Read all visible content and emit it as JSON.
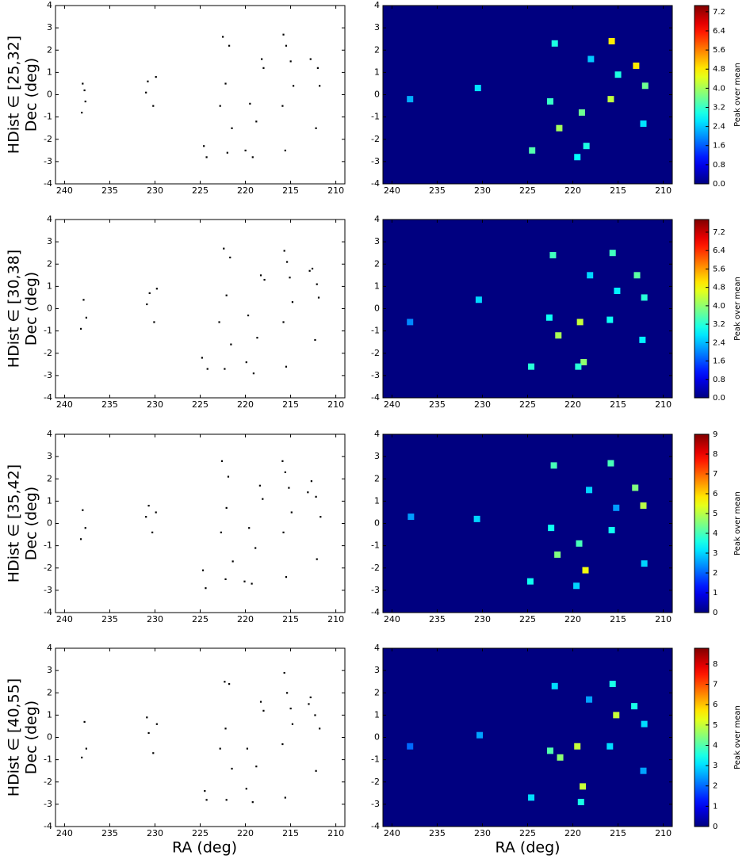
{
  "chart_data": [
    {
      "type": "scatter",
      "row_label": "HDist ∈ [25,32]",
      "ylabel": "Dec (deg)",
      "color": "#000000",
      "x": [
        238,
        237.7,
        238.1,
        237.8,
        230.8,
        230.2,
        231,
        229.9,
        224.6,
        224.3,
        222.5,
        221.8,
        222.2,
        222.8,
        221.5,
        222,
        219.5,
        218.8,
        220,
        219.2,
        218.2,
        218,
        215.8,
        215.5,
        215.9,
        215.6,
        215,
        214.7,
        212.8,
        212,
        211.8,
        212.2
      ],
      "y": [
        0.5,
        -0.3,
        -0.8,
        0.2,
        0.6,
        -0.5,
        0.1,
        0.8,
        -2.3,
        -2.8,
        2.6,
        2.2,
        0.5,
        -0.5,
        -1.5,
        -2.6,
        -0.4,
        -1.2,
        -2.5,
        -2.8,
        1.6,
        1.2,
        2.7,
        2.2,
        -0.5,
        -2.5,
        1.5,
        0.4,
        1.6,
        1.2,
        0.4,
        -1.5
      ],
      "xlim": [
        241,
        209
      ],
      "xticks": [
        240,
        235,
        230,
        225,
        220,
        215,
        210
      ],
      "ylim": [
        -4,
        4
      ],
      "yticks": [
        -4,
        -3,
        -2,
        -1,
        0,
        1,
        2,
        3,
        4
      ]
    },
    {
      "type": "heatmap",
      "colorbar_label": "Peak over mean",
      "x": [
        238,
        230.5,
        224.5,
        222,
        221.5,
        222.5,
        219,
        218.5,
        219.5,
        218,
        215.7,
        215.8,
        215,
        213,
        212,
        212.2
      ],
      "y": [
        -0.2,
        0.3,
        -2.5,
        2.3,
        -1.5,
        -0.3,
        -0.8,
        -2.3,
        -2.8,
        1.6,
        2.4,
        -0.2,
        0.9,
        1.3,
        0.4,
        -1.3
      ],
      "values": [
        2.2,
        2.6,
        3.4,
        3.0,
        4.0,
        3.2,
        3.6,
        3.0,
        2.8,
        2.4,
        4.8,
        4.2,
        3.0,
        4.8,
        3.6,
        2.6
      ],
      "clim": [
        0,
        7.46
      ],
      "cticks": [
        {
          "value": 0,
          "label": "0.0"
        },
        {
          "value": 0.8,
          "label": "0.8"
        },
        {
          "value": 1.6,
          "label": "1.6"
        },
        {
          "value": 2.4,
          "label": "2.4"
        },
        {
          "value": 3.2,
          "label": "3.2"
        },
        {
          "value": 4,
          "label": "4.0"
        },
        {
          "value": 4.8,
          "label": "4.8"
        },
        {
          "value": 5.6,
          "label": "5.6"
        },
        {
          "value": 6.4,
          "label": "6.4"
        },
        {
          "value": 7.2,
          "label": "7.2"
        }
      ],
      "xlim": [
        241,
        209
      ],
      "xticks": [
        240,
        235,
        230,
        225,
        220,
        215,
        210
      ],
      "ylim": [
        -4,
        4
      ],
      "yticks": [
        -4,
        -3,
        -2,
        -1,
        0,
        1,
        2,
        3,
        4
      ]
    },
    {
      "type": "scatter",
      "row_label": "HDist ∈ [30,38]",
      "ylabel": "Dec (deg)",
      "color": "#000000",
      "x": [
        237.9,
        237.6,
        238.2,
        230.6,
        230.1,
        230.9,
        229.8,
        224.8,
        224.2,
        222.4,
        221.7,
        222.1,
        222.9,
        221.6,
        222.3,
        219.7,
        218.7,
        219.9,
        219.1,
        218.3,
        217.9,
        215.7,
        215.4,
        215.8,
        215.5,
        215.1,
        214.8,
        212.9,
        212.1,
        211.9,
        212.3,
        212.6
      ],
      "y": [
        0.4,
        -0.4,
        -0.9,
        0.7,
        -0.6,
        0.2,
        0.9,
        -2.2,
        -2.7,
        2.7,
        2.3,
        0.6,
        -0.6,
        -1.6,
        -2.7,
        -0.3,
        -1.3,
        -2.4,
        -2.9,
        1.5,
        1.3,
        2.6,
        2.1,
        -0.6,
        -2.6,
        1.4,
        0.3,
        1.7,
        1.1,
        0.5,
        -1.4,
        1.8
      ],
      "xlim": [
        241,
        209
      ],
      "xticks": [
        240,
        235,
        230,
        225,
        220,
        215,
        210
      ],
      "ylim": [
        -4,
        4
      ],
      "yticks": [
        -4,
        -3,
        -2,
        -1,
        0,
        1,
        2,
        3,
        4
      ]
    },
    {
      "type": "heatmap",
      "colorbar_label": "Peak over mean",
      "x": [
        238,
        230.4,
        224.6,
        222.2,
        221.6,
        222.6,
        219.2,
        218.8,
        219.4,
        218.1,
        215.6,
        215.9,
        215.1,
        212.9,
        212.1,
        212.3
      ],
      "y": [
        -0.6,
        0.4,
        -2.6,
        2.4,
        -1.2,
        -0.4,
        -0.6,
        -2.4,
        -2.6,
        1.5,
        2.5,
        -0.5,
        0.8,
        1.5,
        0.5,
        -1.4
      ],
      "values": [
        2.0,
        2.6,
        3.2,
        3.4,
        4.2,
        3.0,
        4.4,
        4.0,
        3.2,
        2.6,
        3.4,
        3.0,
        2.8,
        3.6,
        3.2,
        2.8
      ],
      "clim": [
        0,
        7.75
      ],
      "cticks": [
        {
          "value": 0,
          "label": "0.0"
        },
        {
          "value": 0.8,
          "label": "0.8"
        },
        {
          "value": 1.6,
          "label": "1.6"
        },
        {
          "value": 2.4,
          "label": "2.4"
        },
        {
          "value": 3.2,
          "label": "3.2"
        },
        {
          "value": 4,
          "label": "4.0"
        },
        {
          "value": 4.8,
          "label": "4.8"
        },
        {
          "value": 5.6,
          "label": "5.6"
        },
        {
          "value": 6.4,
          "label": "6.4"
        },
        {
          "value": 7.2,
          "label": "7.2"
        }
      ],
      "xlim": [
        241,
        209
      ],
      "xticks": [
        240,
        235,
        230,
        225,
        220,
        215,
        210
      ],
      "ylim": [
        -4,
        4
      ],
      "yticks": [
        -4,
        -3,
        -2,
        -1,
        0,
        1,
        2,
        3,
        4
      ]
    },
    {
      "type": "scatter",
      "row_label": "HDist ∈ [35,42]",
      "ylabel": "Dec (deg)",
      "color": "#000000",
      "x": [
        238,
        237.7,
        238.2,
        230.7,
        230.3,
        231,
        229.9,
        224.7,
        224.4,
        222.6,
        221.9,
        222.1,
        222.7,
        221.4,
        222.2,
        219.6,
        218.9,
        220.1,
        219.3,
        218.4,
        218.1,
        215.9,
        215.6,
        215.8,
        215.5,
        215.2,
        214.9,
        212.7,
        212.2,
        211.7,
        212.1,
        213.1
      ],
      "y": [
        0.6,
        -0.2,
        -0.7,
        0.8,
        -0.4,
        0.3,
        0.5,
        -2.1,
        -2.9,
        2.8,
        2.1,
        0.7,
        -0.4,
        -1.7,
        -2.5,
        -0.2,
        -1.1,
        -2.6,
        -2.7,
        1.7,
        1.1,
        2.8,
        2.3,
        -0.4,
        -2.4,
        1.6,
        0.5,
        1.9,
        1.2,
        0.3,
        -1.6,
        1.4
      ],
      "xlim": [
        241,
        209
      ],
      "xticks": [
        240,
        235,
        230,
        225,
        220,
        215,
        210
      ],
      "ylim": [
        -4,
        4
      ],
      "yticks": [
        -4,
        -3,
        -2,
        -1,
        0,
        1,
        2,
        3,
        4
      ]
    },
    {
      "type": "heatmap",
      "colorbar_label": "Peak over mean",
      "x": [
        237.9,
        230.6,
        224.7,
        222.1,
        221.7,
        222.4,
        219.3,
        218.6,
        219.6,
        218.2,
        215.8,
        215.7,
        215.2,
        213.1,
        212.2,
        212.1
      ],
      "y": [
        0.3,
        0.2,
        -2.6,
        2.6,
        -1.4,
        -0.2,
        -0.9,
        -2.1,
        -2.8,
        1.5,
        2.7,
        -0.3,
        0.7,
        1.6,
        0.8,
        -1.8
      ],
      "values": [
        2.5,
        3.0,
        3.5,
        4.0,
        4.5,
        3.5,
        4.0,
        5.5,
        3.0,
        3.0,
        4.0,
        3.5,
        2.5,
        4.5,
        5.0,
        3.0
      ],
      "clim": [
        0,
        9
      ],
      "cticks": [
        0,
        1,
        2,
        3,
        4,
        5,
        6,
        7,
        8,
        9
      ],
      "xlim": [
        241,
        209
      ],
      "xticks": [
        240,
        235,
        230,
        225,
        220,
        215,
        210
      ],
      "ylim": [
        -4,
        4
      ],
      "yticks": [
        -4,
        -3,
        -2,
        -1,
        0,
        1,
        2,
        3,
        4
      ]
    },
    {
      "type": "scatter",
      "row_label": "HDist ∈ [40,55]",
      "ylabel": "Dec (deg)",
      "color": "#000000",
      "x": [
        237.8,
        237.6,
        238.1,
        230.9,
        230.2,
        230.7,
        229.8,
        224.5,
        224.3,
        222.3,
        221.8,
        222.2,
        222.8,
        221.5,
        222.1,
        219.8,
        218.8,
        219.9,
        219.2,
        218.3,
        218,
        215.7,
        215.4,
        215.9,
        215.6,
        215,
        214.8,
        212.8,
        212.3,
        211.8,
        212.2,
        213
      ],
      "y": [
        0.7,
        -0.5,
        -0.9,
        0.9,
        -0.7,
        0.2,
        0.6,
        -2.4,
        -2.8,
        2.5,
        2.4,
        0.4,
        -0.5,
        -1.4,
        -2.8,
        -0.5,
        -1.3,
        -2.3,
        -2.9,
        1.6,
        1.2,
        2.9,
        2.0,
        -0.3,
        -2.7,
        1.3,
        0.6,
        1.8,
        1.0,
        0.4,
        -1.5,
        1.5
      ],
      "xlim": [
        241,
        209
      ],
      "xticks": [
        240,
        235,
        230,
        225,
        220,
        215,
        210
      ],
      "ylim": [
        -4,
        4
      ],
      "yticks": [
        -4,
        -3,
        -2,
        -1,
        0,
        1,
        2,
        3,
        4
      ]
    },
    {
      "type": "heatmap",
      "colorbar_label": "Peak over mean",
      "x": [
        238,
        230.3,
        224.6,
        222,
        221.4,
        222.5,
        219.5,
        218.9,
        219.1,
        218.2,
        215.6,
        215.9,
        215.2,
        213.2,
        212.1,
        212.2
      ],
      "y": [
        -0.4,
        0.1,
        -2.7,
        2.3,
        -0.9,
        -0.6,
        -0.4,
        -2.2,
        -2.9,
        1.7,
        2.4,
        -0.4,
        1.0,
        1.4,
        0.6,
        -1.5
      ],
      "values": [
        2.0,
        2.5,
        3.0,
        3.0,
        4.5,
        4.0,
        5.0,
        5.0,
        3.5,
        2.5,
        3.5,
        3.0,
        5.0,
        3.5,
        3.0,
        2.5
      ],
      "clim": [
        0,
        8.78
      ],
      "cticks": [
        0,
        1,
        2,
        3,
        4,
        5,
        6,
        7,
        8
      ],
      "xlabel": "RA (deg)",
      "xlim": [
        241,
        209
      ],
      "xticks": [
        240,
        235,
        230,
        225,
        220,
        215,
        210
      ],
      "ylim": [
        -4,
        4
      ],
      "yticks": [
        -4,
        -3,
        -2,
        -1,
        0,
        1,
        2,
        3,
        4
      ]
    }
  ]
}
